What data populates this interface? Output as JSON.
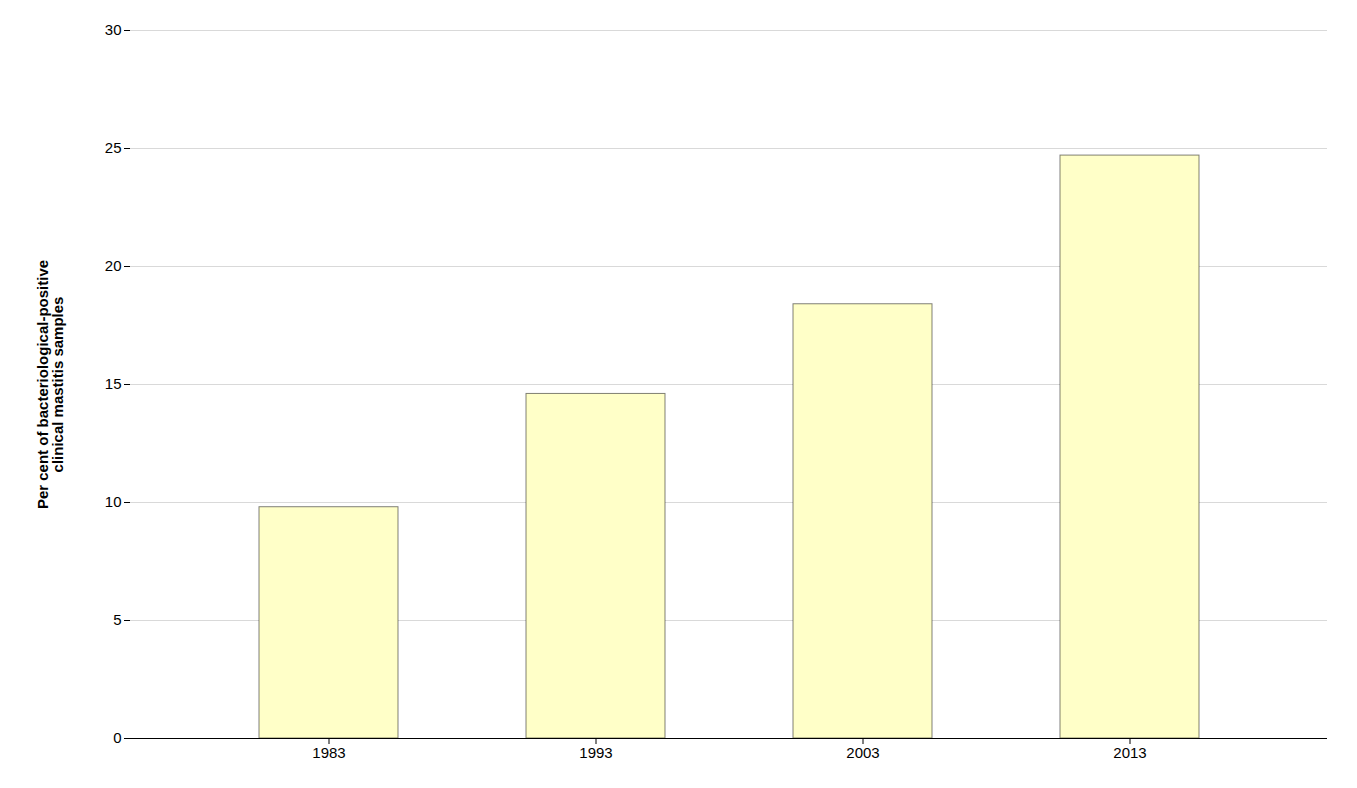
{
  "chart_data": {
    "type": "bar",
    "ylabel": "Per cent of bacteriological-positive\nclinical mastitis samples",
    "categories": [
      "1983",
      "1993",
      "2003",
      "2013"
    ],
    "values": [
      9.8,
      14.6,
      18.4,
      24.7
    ],
    "color": "#FFFFC8",
    "ylim": [
      0,
      30
    ],
    "yticks": [
      0,
      5,
      10,
      15,
      20,
      25,
      30
    ],
    "grid": true
  }
}
